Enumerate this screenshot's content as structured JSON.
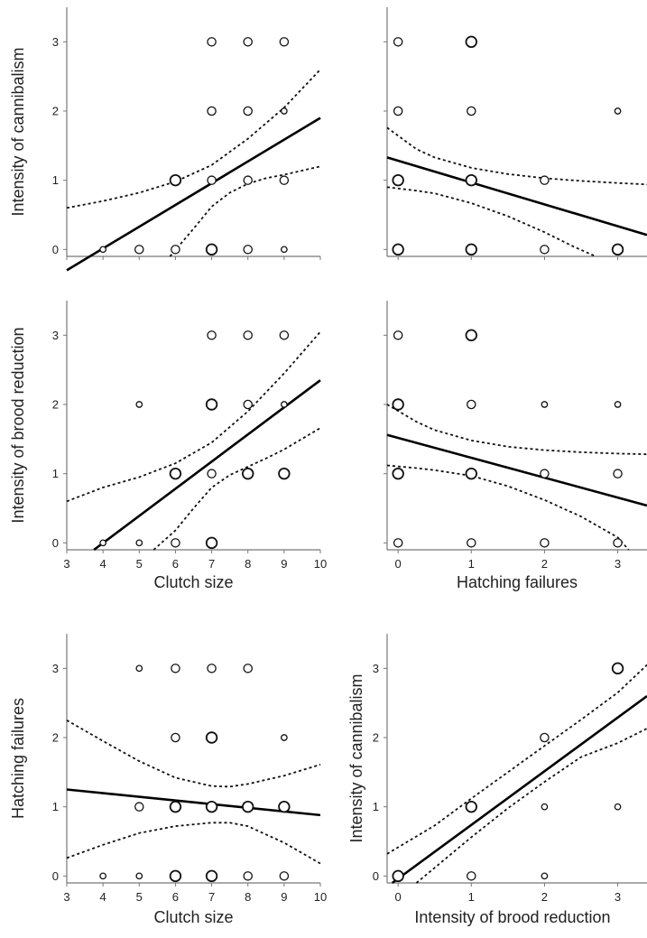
{
  "chart_data": [
    {
      "type": "scatter",
      "ylabel": "Intensity of cannibalism",
      "xlabel": "",
      "xlim": [
        3,
        10
      ],
      "ylim": [
        -0.1,
        3.5
      ],
      "xticks": [
        3,
        4,
        5,
        6,
        7,
        8,
        9,
        10
      ],
      "yticks": [
        0,
        1,
        2,
        3
      ],
      "show_xticklabels": false,
      "show_yticklabels": true,
      "points": [
        {
          "x": 4,
          "y": 0,
          "s": 1
        },
        {
          "x": 5,
          "y": 0,
          "s": 2
        },
        {
          "x": 6,
          "y": 0,
          "s": 2
        },
        {
          "x": 7,
          "y": 0,
          "s": 3
        },
        {
          "x": 8,
          "y": 0,
          "s": 2
        },
        {
          "x": 9,
          "y": 0,
          "s": 1
        },
        {
          "x": 6,
          "y": 1,
          "s": 3
        },
        {
          "x": 7,
          "y": 1,
          "s": 2
        },
        {
          "x": 8,
          "y": 1,
          "s": 2
        },
        {
          "x": 9,
          "y": 1,
          "s": 2
        },
        {
          "x": 7,
          "y": 2,
          "s": 2
        },
        {
          "x": 8,
          "y": 2,
          "s": 2
        },
        {
          "x": 9,
          "y": 2,
          "s": 1
        },
        {
          "x": 7,
          "y": 3,
          "s": 2
        },
        {
          "x": 8,
          "y": 3,
          "s": 2
        },
        {
          "x": 9,
          "y": 3,
          "s": 2
        }
      ],
      "fit": {
        "x": [
          3,
          10
        ],
        "y": [
          -0.3,
          1.9
        ]
      },
      "ci_upper": {
        "x": [
          3,
          4,
          5,
          6,
          7,
          8,
          9,
          10
        ],
        "y": [
          0.6,
          0.7,
          0.82,
          0.98,
          1.22,
          1.6,
          2.05,
          2.6
        ]
      },
      "ci_lower": {
        "x": [
          5.85,
          6.5,
          7,
          7.5,
          8,
          8.5,
          9,
          10
        ],
        "y": [
          -0.1,
          0.3,
          0.62,
          0.82,
          0.95,
          1.03,
          1.08,
          1.2
        ]
      }
    },
    {
      "type": "scatter",
      "ylabel": "",
      "xlabel": "",
      "xlim": [
        -0.15,
        3.4
      ],
      "ylim": [
        -0.1,
        3.5
      ],
      "xticks": [
        0,
        1,
        2,
        3
      ],
      "yticks": [
        0,
        1,
        2,
        3
      ],
      "show_xticklabels": false,
      "show_yticklabels": false,
      "points": [
        {
          "x": 0,
          "y": 0,
          "s": 3
        },
        {
          "x": 1,
          "y": 0,
          "s": 3
        },
        {
          "x": 2,
          "y": 0,
          "s": 2
        },
        {
          "x": 3,
          "y": 0,
          "s": 3
        },
        {
          "x": 0,
          "y": 1,
          "s": 3
        },
        {
          "x": 1,
          "y": 1,
          "s": 3
        },
        {
          "x": 2,
          "y": 1,
          "s": 2
        },
        {
          "x": 0,
          "y": 2,
          "s": 2
        },
        {
          "x": 1,
          "y": 2,
          "s": 2
        },
        {
          "x": 3,
          "y": 2,
          "s": 1
        },
        {
          "x": 0,
          "y": 3,
          "s": 2
        },
        {
          "x": 1,
          "y": 3,
          "s": 3
        }
      ],
      "fit": {
        "x": [
          -0.15,
          3.4
        ],
        "y": [
          1.33,
          0.21
        ]
      },
      "ci_upper": {
        "x": [
          -0.15,
          0.25,
          0.5,
          1,
          1.5,
          2,
          2.5,
          3,
          3.4
        ],
        "y": [
          1.76,
          1.45,
          1.33,
          1.18,
          1.09,
          1.03,
          0.99,
          0.96,
          0.94
        ]
      },
      "ci_lower": {
        "x": [
          -0.15,
          0.25,
          0.5,
          1,
          1.5,
          2,
          2.4,
          2.7
        ],
        "y": [
          0.9,
          0.85,
          0.81,
          0.67,
          0.48,
          0.25,
          0.04,
          -0.1
        ]
      }
    },
    {
      "type": "scatter",
      "ylabel": "Intensity of brood reduction",
      "xlabel": "Clutch size",
      "xlim": [
        3,
        10
      ],
      "ylim": [
        -0.1,
        3.5
      ],
      "xticks": [
        3,
        4,
        5,
        6,
        7,
        8,
        9,
        10
      ],
      "yticks": [
        0,
        1,
        2,
        3
      ],
      "show_xticklabels": true,
      "show_yticklabels": true,
      "points": [
        {
          "x": 4,
          "y": 0,
          "s": 1
        },
        {
          "x": 5,
          "y": 0,
          "s": 1
        },
        {
          "x": 6,
          "y": 0,
          "s": 2
        },
        {
          "x": 7,
          "y": 0,
          "s": 3
        },
        {
          "x": 6,
          "y": 1,
          "s": 3
        },
        {
          "x": 7,
          "y": 1,
          "s": 2
        },
        {
          "x": 8,
          "y": 1,
          "s": 3
        },
        {
          "x": 9,
          "y": 1,
          "s": 3
        },
        {
          "x": 5,
          "y": 2,
          "s": 1
        },
        {
          "x": 7,
          "y": 2,
          "s": 3
        },
        {
          "x": 8,
          "y": 2,
          "s": 2
        },
        {
          "x": 9,
          "y": 2,
          "s": 1
        },
        {
          "x": 7,
          "y": 3,
          "s": 2
        },
        {
          "x": 8,
          "y": 3,
          "s": 2
        },
        {
          "x": 9,
          "y": 3,
          "s": 2
        }
      ],
      "fit": {
        "x": [
          3.75,
          10
        ],
        "y": [
          -0.1,
          2.35
        ]
      },
      "ci_upper": {
        "x": [
          3,
          4,
          5,
          6,
          7,
          8,
          9,
          10
        ],
        "y": [
          0.6,
          0.8,
          0.95,
          1.15,
          1.45,
          1.9,
          2.45,
          3.05
        ]
      },
      "ci_lower": {
        "x": [
          5.4,
          6,
          6.5,
          7,
          7.5,
          8,
          8.5,
          9,
          10
        ],
        "y": [
          -0.1,
          0.18,
          0.5,
          0.8,
          0.98,
          1.1,
          1.22,
          1.35,
          1.66
        ]
      }
    },
    {
      "type": "scatter",
      "ylabel": "",
      "xlabel": "Hatching failures",
      "xlim": [
        -0.15,
        3.4
      ],
      "ylim": [
        -0.1,
        3.5
      ],
      "xticks": [
        0,
        1,
        2,
        3
      ],
      "yticks": [
        0,
        1,
        2,
        3
      ],
      "show_xticklabels": true,
      "show_yticklabels": false,
      "points": [
        {
          "x": 0,
          "y": 0,
          "s": 2
        },
        {
          "x": 1,
          "y": 0,
          "s": 2
        },
        {
          "x": 2,
          "y": 0,
          "s": 2
        },
        {
          "x": 3,
          "y": 0,
          "s": 2
        },
        {
          "x": 0,
          "y": 1,
          "s": 3
        },
        {
          "x": 1,
          "y": 1,
          "s": 3
        },
        {
          "x": 2,
          "y": 1,
          "s": 2
        },
        {
          "x": 3,
          "y": 1,
          "s": 2
        },
        {
          "x": 0,
          "y": 2,
          "s": 3
        },
        {
          "x": 1,
          "y": 2,
          "s": 2
        },
        {
          "x": 2,
          "y": 2,
          "s": 1
        },
        {
          "x": 3,
          "y": 2,
          "s": 1
        },
        {
          "x": 0,
          "y": 3,
          "s": 2
        },
        {
          "x": 1,
          "y": 3,
          "s": 3
        }
      ],
      "fit": {
        "x": [
          -0.15,
          3.4
        ],
        "y": [
          1.56,
          0.54
        ]
      },
      "ci_upper": {
        "x": [
          -0.15,
          0.25,
          0.5,
          1,
          1.5,
          2,
          2.5,
          3,
          3.4
        ],
        "y": [
          2.0,
          1.75,
          1.63,
          1.48,
          1.39,
          1.34,
          1.31,
          1.29,
          1.28
        ]
      },
      "ci_lower": {
        "x": [
          -0.15,
          0.25,
          0.5,
          1,
          1.5,
          2,
          2.5,
          3,
          3.15
        ],
        "y": [
          1.12,
          1.08,
          1.05,
          0.97,
          0.82,
          0.62,
          0.38,
          0.08,
          -0.1
        ]
      }
    },
    {
      "type": "scatter",
      "ylabel": "Hatching failures",
      "xlabel": "Clutch size",
      "xlim": [
        3,
        10
      ],
      "ylim": [
        -0.1,
        3.5
      ],
      "xticks": [
        3,
        4,
        5,
        6,
        7,
        8,
        9,
        10
      ],
      "yticks": [
        0,
        1,
        2,
        3
      ],
      "show_xticklabels": true,
      "show_yticklabels": true,
      "points": [
        {
          "x": 4,
          "y": 0,
          "s": 1
        },
        {
          "x": 5,
          "y": 0,
          "s": 1
        },
        {
          "x": 6,
          "y": 0,
          "s": 3
        },
        {
          "x": 7,
          "y": 0,
          "s": 3
        },
        {
          "x": 8,
          "y": 0,
          "s": 2
        },
        {
          "x": 9,
          "y": 0,
          "s": 2
        },
        {
          "x": 5,
          "y": 1,
          "s": 2
        },
        {
          "x": 6,
          "y": 1,
          "s": 3
        },
        {
          "x": 7,
          "y": 1,
          "s": 3
        },
        {
          "x": 8,
          "y": 1,
          "s": 3
        },
        {
          "x": 9,
          "y": 1,
          "s": 3
        },
        {
          "x": 6,
          "y": 2,
          "s": 2
        },
        {
          "x": 7,
          "y": 2,
          "s": 3
        },
        {
          "x": 9,
          "y": 2,
          "s": 1
        },
        {
          "x": 5,
          "y": 3,
          "s": 1
        },
        {
          "x": 6,
          "y": 3,
          "s": 2
        },
        {
          "x": 7,
          "y": 3,
          "s": 2
        },
        {
          "x": 8,
          "y": 3,
          "s": 2
        }
      ],
      "fit": {
        "x": [
          3,
          10
        ],
        "y": [
          1.25,
          0.88
        ]
      },
      "ci_upper": {
        "x": [
          3,
          4,
          5,
          6,
          7,
          7.5,
          8,
          9,
          10
        ],
        "y": [
          2.25,
          1.95,
          1.66,
          1.42,
          1.3,
          1.29,
          1.33,
          1.45,
          1.61
        ]
      },
      "ci_lower": {
        "x": [
          3,
          4,
          5,
          6,
          7,
          7.5,
          8,
          9,
          10
        ],
        "y": [
          0.26,
          0.45,
          0.62,
          0.72,
          0.77,
          0.77,
          0.72,
          0.48,
          0.18
        ]
      }
    },
    {
      "type": "scatter",
      "ylabel": "Intensity of cannibalism",
      "xlabel": "Intensity of brood reduction",
      "xlim": [
        -0.15,
        3.4
      ],
      "ylim": [
        -0.1,
        3.5
      ],
      "xticks": [
        0,
        1,
        2,
        3
      ],
      "yticks": [
        0,
        1,
        2,
        3
      ],
      "show_xticklabels": true,
      "show_yticklabels": true,
      "points": [
        {
          "x": 0,
          "y": 0,
          "s": 3
        },
        {
          "x": 1,
          "y": 0,
          "s": 2
        },
        {
          "x": 2,
          "y": 0,
          "s": 1
        },
        {
          "x": 1,
          "y": 1,
          "s": 3
        },
        {
          "x": 2,
          "y": 1,
          "s": 1
        },
        {
          "x": 3,
          "y": 1,
          "s": 1
        },
        {
          "x": 2,
          "y": 2,
          "s": 2
        },
        {
          "x": 3,
          "y": 3,
          "s": 3
        }
      ],
      "fit": {
        "x": [
          -0.08,
          3.4
        ],
        "y": [
          -0.1,
          2.6
        ]
      },
      "ci_upper": {
        "x": [
          -0.15,
          0.5,
          1,
          1.5,
          2,
          2.5,
          3,
          3.4
        ],
        "y": [
          0.32,
          0.73,
          1.12,
          1.5,
          1.88,
          2.26,
          2.65,
          3.05
        ]
      },
      "ci_lower": {
        "x": [
          0.25,
          1,
          1.5,
          2,
          2.5,
          3,
          3.4
        ],
        "y": [
          -0.1,
          0.56,
          0.98,
          1.36,
          1.72,
          1.92,
          2.13
        ]
      }
    }
  ]
}
